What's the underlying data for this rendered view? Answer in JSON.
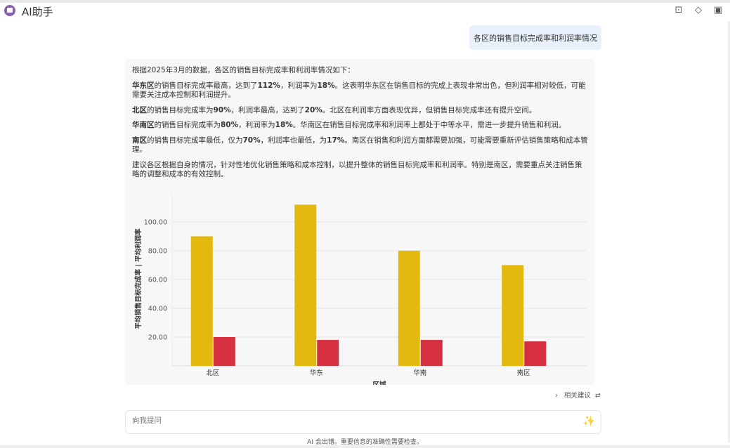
{
  "header": {
    "title": "AI助手",
    "icons": [
      "feedback-icon",
      "eraser-icon",
      "camera-icon"
    ]
  },
  "user_message": "各区的销售目标完成率和利润率情况",
  "answer": {
    "intro": "根据2025年3月的数据，各区的销售目标完成率和利润率情况如下：",
    "paragraphs": [
      {
        "bold": "华东区",
        "rest_pre": "的销售目标完成率最高，达到了",
        "v1": "112%",
        "mid": "，利润率为",
        "v2": "18%",
        "rest": "。这表明华东区在销售目标的完成上表现非常出色，但利润率相对较低，可能需要关注成本控制和利润提升。"
      },
      {
        "bold": "北区",
        "rest_pre": "的销售目标完成率为",
        "v1": "90%",
        "mid": "，利润率最高，达到了",
        "v2": "20%",
        "rest": "。北区在利润率方面表现优异，但销售目标完成率还有提升空间。"
      },
      {
        "bold": "华南区",
        "rest_pre": "的销售目标完成率为",
        "v1": "80%",
        "mid": "，利润率为",
        "v2": "18%",
        "rest": "。华南区在销售目标完成率和利润率上都处于中等水平，需进一步提升销售和利润。"
      },
      {
        "bold": "南区",
        "rest_pre": "的销售目标完成率最低，仅为",
        "v1": "70%",
        "mid": "，利润率也最低，为",
        "v2": "17%",
        "rest": "。南区在销售和利润方面都需要加强，可能需要重新评估销售策略和成本管理。"
      }
    ],
    "conclusion": "建议各区根据自身的情况，针对性地优化销售策略和成本控制，以提升整体的销售目标完成率和利润率。特别是南区，需要重点关注销售策略的调整和成本的有效控制。"
  },
  "chart_data": {
    "type": "bar",
    "categories": [
      "北区",
      "华东",
      "华南",
      "南区"
    ],
    "series": [
      {
        "values": [
          90,
          112,
          80,
          70
        ],
        "color": "#e4b90f"
      },
      {
        "values": [
          20,
          18,
          18,
          17
        ],
        "color": "#d63040"
      }
    ],
    "yticks": [
      "20.00",
      "40.00",
      "60.00",
      "80.00",
      "100.00"
    ],
    "ylabel": "平均销售目标完成率 | 平均利润率",
    "xlabel": "区域",
    "grid": true
  },
  "related_label": "相关建议",
  "input": {
    "placeholder": "向我提问"
  },
  "disclaimer": "AI 会出错。重要信息的准确性需要检查。"
}
